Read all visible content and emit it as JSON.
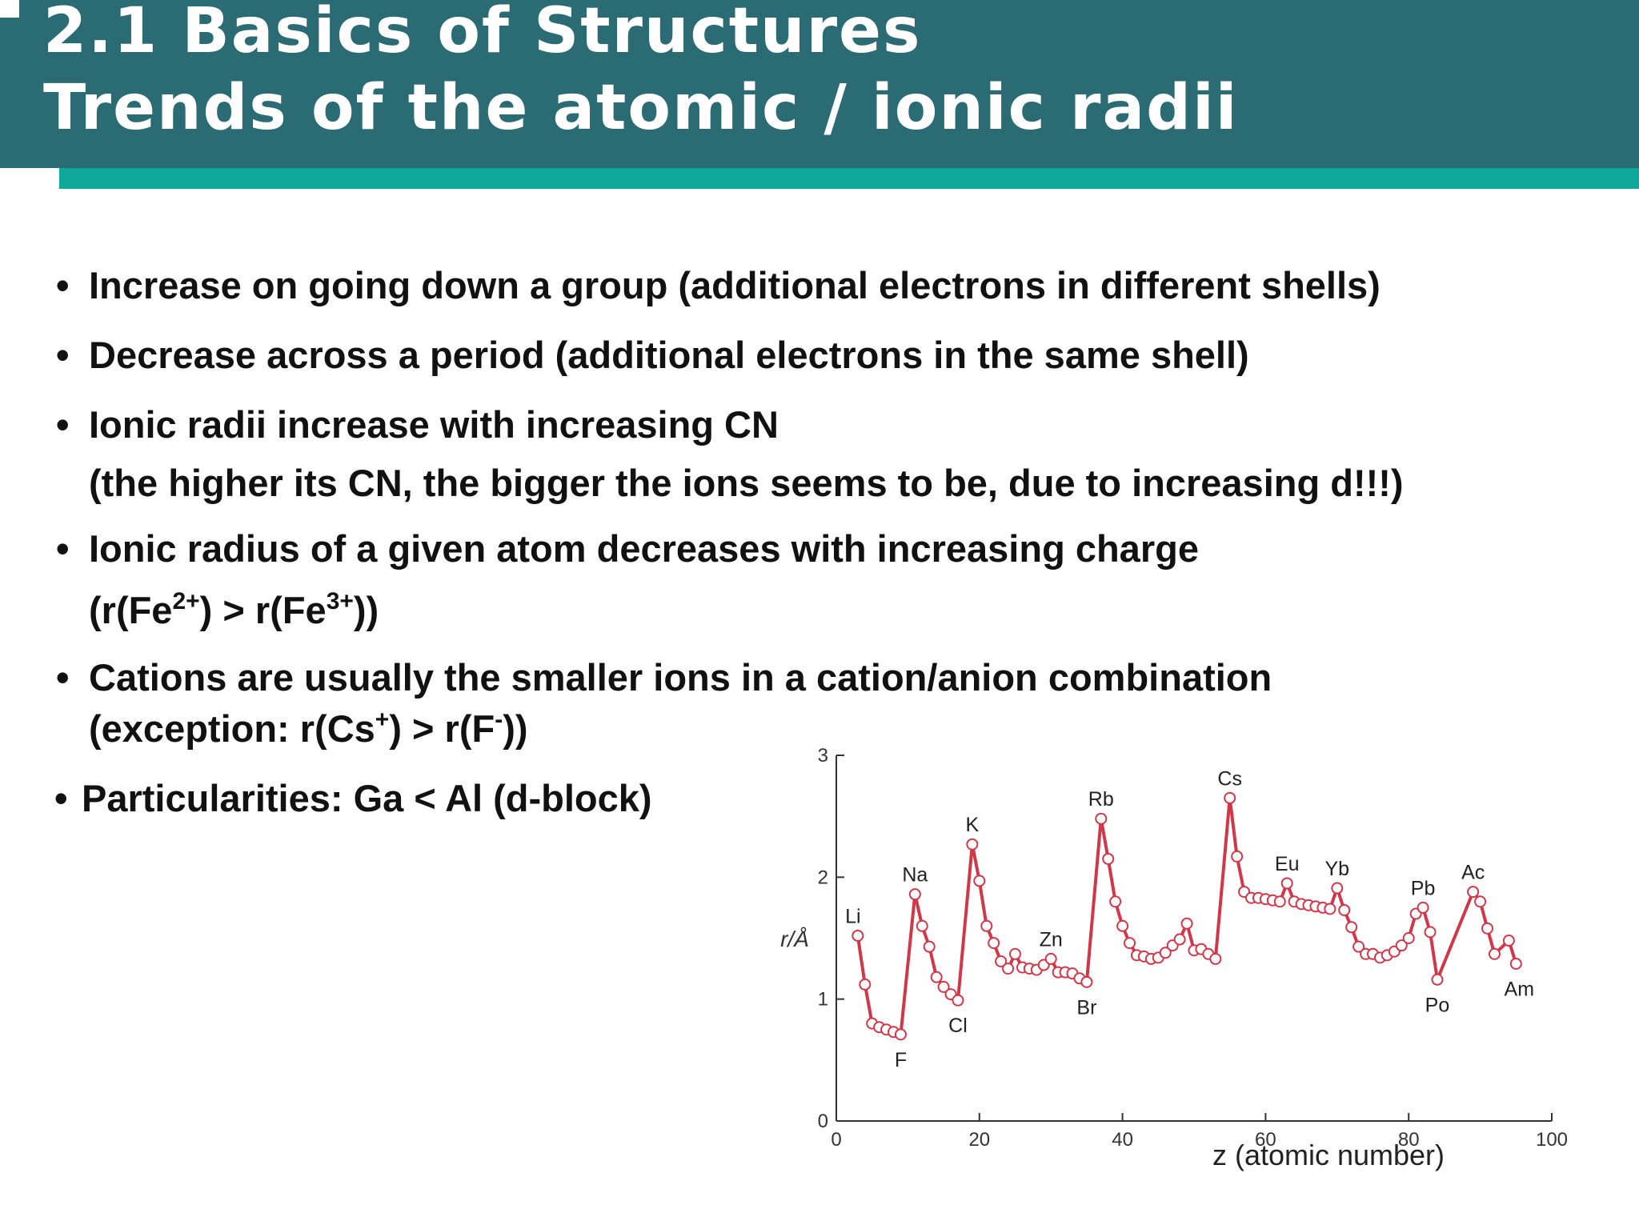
{
  "header": {
    "title_lines": [
      "2.1 Basics of Structures",
      "Trends of the atomic / ionic radii"
    ]
  },
  "bullets": [
    {
      "lines": [
        [
          {
            "text": "Increase on going down a group (additional electrons in different shells)"
          }
        ]
      ]
    },
    {
      "lines": [
        [
          {
            "text": "Decrease across a period (additional electrons in the same shell)"
          }
        ]
      ]
    },
    {
      "lines": [
        [
          {
            "text": "Ionic radii increase with increasing CN"
          }
        ],
        [
          {
            "text": "(the higher its CN, the bigger the ions seems to be, due to increasing d!!!)"
          }
        ]
      ]
    },
    {
      "lines": [
        [
          {
            "text": "Ionic radius of a given atom decreases with increasing charge"
          }
        ],
        [
          {
            "text": "(r(Fe"
          },
          {
            "text": "2+",
            "sup": true
          },
          {
            "text": ") > r(Fe"
          },
          {
            "text": "3+",
            "sup": true
          },
          {
            "text": "))"
          }
        ]
      ]
    },
    {
      "lines": [
        [
          {
            "text": "Cations are usually the smaller ions in a cation/anion combination"
          }
        ],
        [
          {
            "text": "(exception: r(Cs"
          },
          {
            "text": "+",
            "sup": true
          },
          {
            "text": ") > r(F"
          },
          {
            "text": "-",
            "sup": true
          },
          {
            "text": "))"
          }
        ]
      ]
    },
    {
      "lines": [
        [
          {
            "text": "Particularities: Ga < Al (d-block)"
          }
        ]
      ]
    }
  ],
  "chart_data": {
    "type": "line",
    "x_label": "z (atomic number)",
    "y_label": "r/Å",
    "color": "#d0384a",
    "x": [
      3,
      4,
      5,
      6,
      7,
      8,
      9,
      11,
      12,
      13,
      14,
      15,
      16,
      17,
      19,
      20,
      21,
      22,
      23,
      24,
      25,
      26,
      27,
      28,
      29,
      30,
      31,
      32,
      33,
      34,
      35,
      37,
      38,
      39,
      40,
      41,
      42,
      43,
      44,
      45,
      46,
      47,
      48,
      49,
      50,
      51,
      52,
      53,
      55,
      56,
      57,
      58,
      59,
      60,
      61,
      62,
      63,
      64,
      65,
      66,
      67,
      68,
      69,
      70,
      71,
      72,
      73,
      74,
      75,
      76,
      77,
      78,
      79,
      80,
      81,
      82,
      83,
      84,
      89,
      90,
      91,
      92,
      94,
      95
    ],
    "values": [
      1.52,
      1.12,
      0.8,
      0.77,
      0.75,
      0.73,
      0.71,
      1.86,
      1.6,
      1.43,
      1.18,
      1.1,
      1.04,
      0.99,
      2.27,
      1.97,
      1.6,
      1.46,
      1.31,
      1.25,
      1.37,
      1.26,
      1.25,
      1.24,
      1.28,
      1.33,
      1.22,
      1.22,
      1.21,
      1.17,
      1.14,
      2.48,
      2.15,
      1.8,
      1.6,
      1.46,
      1.36,
      1.35,
      1.33,
      1.34,
      1.38,
      1.44,
      1.49,
      1.62,
      1.4,
      1.41,
      1.37,
      1.33,
      2.65,
      2.17,
      1.88,
      1.83,
      1.83,
      1.82,
      1.81,
      1.8,
      1.95,
      1.8,
      1.78,
      1.77,
      1.76,
      1.75,
      1.74,
      1.91,
      1.73,
      1.59,
      1.43,
      1.37,
      1.37,
      1.34,
      1.36,
      1.39,
      1.44,
      1.5,
      1.7,
      1.75,
      1.55,
      1.16,
      1.88,
      1.8,
      1.58,
      1.37,
      1.48,
      1.29
    ],
    "labels": [
      "Li",
      null,
      null,
      null,
      null,
      null,
      "F",
      "Na",
      null,
      null,
      null,
      null,
      null,
      "Cl",
      "K",
      null,
      null,
      null,
      null,
      null,
      null,
      null,
      null,
      null,
      null,
      "Zn",
      null,
      null,
      null,
      null,
      "Br",
      "Rb",
      null,
      null,
      null,
      null,
      null,
      null,
      null,
      null,
      null,
      null,
      null,
      null,
      null,
      null,
      null,
      null,
      "Cs",
      null,
      null,
      null,
      null,
      null,
      null,
      null,
      "Eu",
      null,
      null,
      null,
      null,
      null,
      null,
      "Yb",
      null,
      null,
      null,
      null,
      null,
      null,
      null,
      null,
      null,
      null,
      null,
      "Pb",
      null,
      "Po",
      "Ac",
      null,
      null,
      null,
      null,
      "Am"
    ],
    "xlim": [
      0,
      100
    ],
    "xticks": [
      0,
      20,
      40,
      60,
      80,
      100
    ],
    "ylim": [
      0,
      3
    ],
    "yticks": [
      0,
      1,
      2,
      3
    ]
  }
}
